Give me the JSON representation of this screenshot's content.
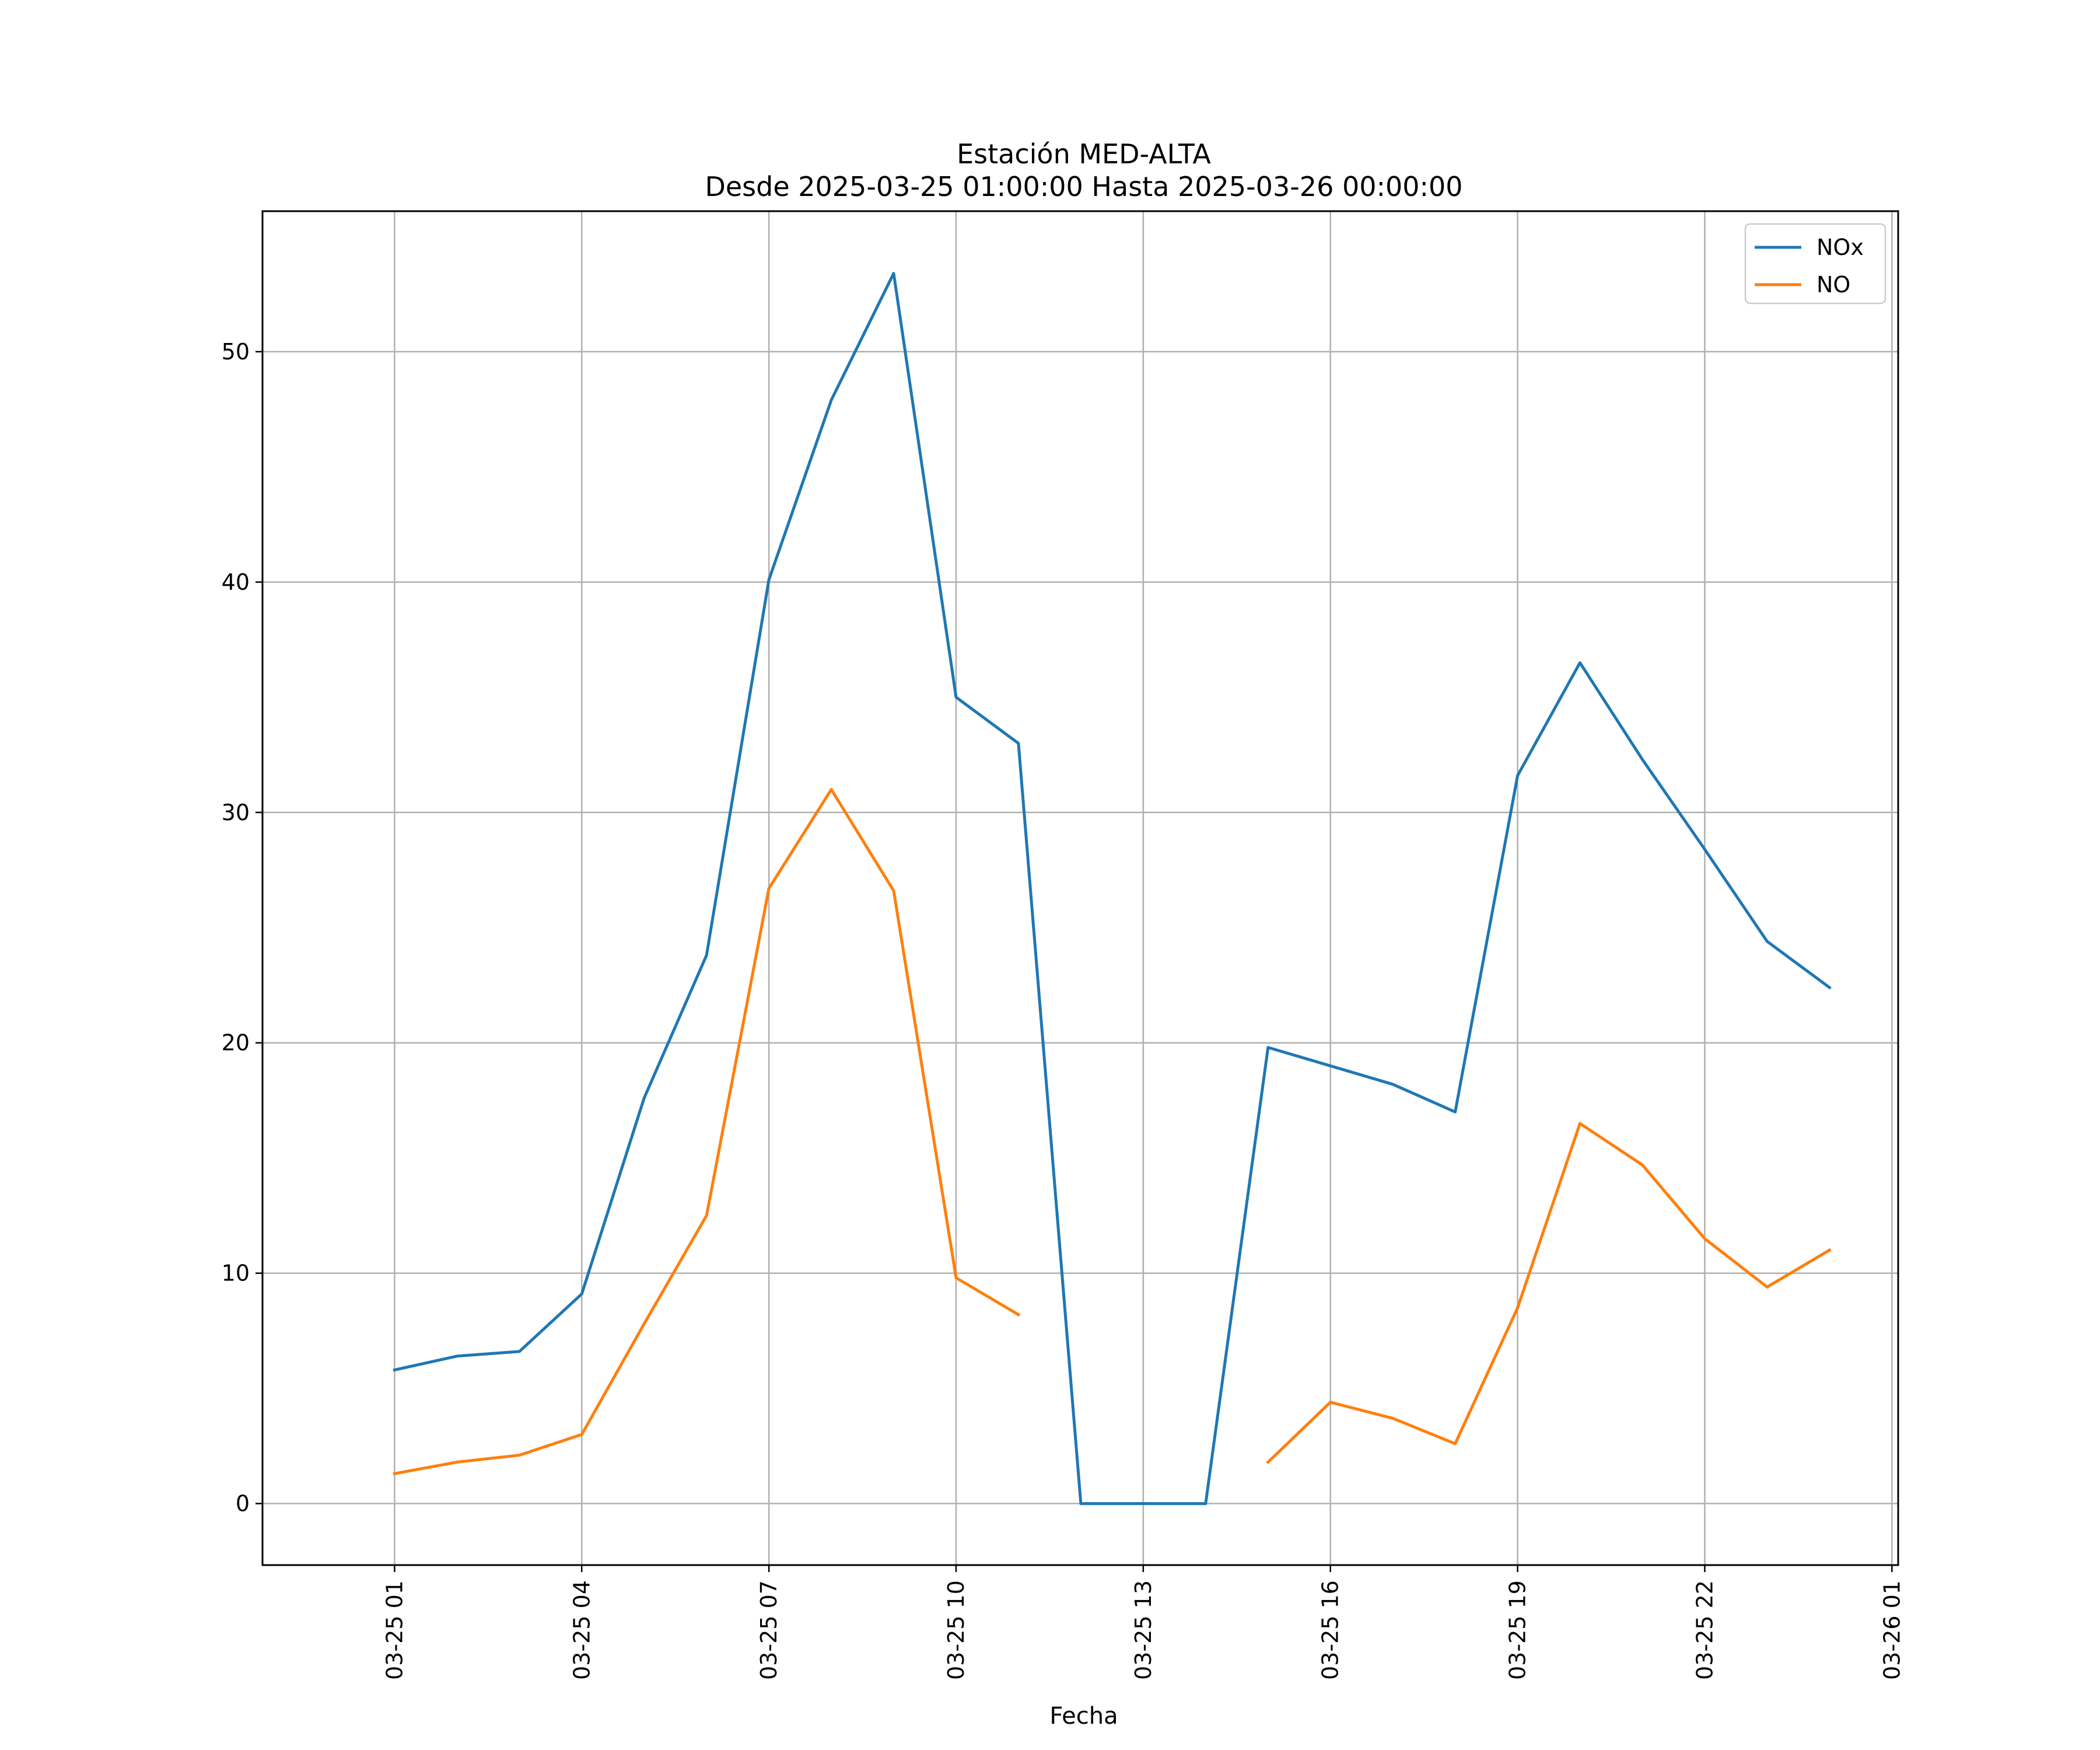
{
  "chart_data": {
    "type": "line",
    "title": "Estación MED-ALTA",
    "subtitle": "Desde 2025-03-25 01:00:00 Hasta 2025-03-26 00:00:00",
    "xlabel": "Fecha",
    "ylabel": "",
    "x": [
      "2025-03-25 01:00",
      "2025-03-25 02:00",
      "2025-03-25 03:00",
      "2025-03-25 04:00",
      "2025-03-25 05:00",
      "2025-03-25 06:00",
      "2025-03-25 07:00",
      "2025-03-25 08:00",
      "2025-03-25 09:00",
      "2025-03-25 10:00",
      "2025-03-25 11:00",
      "2025-03-25 12:00",
      "2025-03-25 13:00",
      "2025-03-25 14:00",
      "2025-03-25 15:00",
      "2025-03-25 16:00",
      "2025-03-25 17:00",
      "2025-03-25 18:00",
      "2025-03-25 19:00",
      "2025-03-25 20:00",
      "2025-03-25 21:00",
      "2025-03-25 22:00",
      "2025-03-25 23:00",
      "2025-03-26 00:00"
    ],
    "series": [
      {
        "name": "NOx",
        "color": "#1f77b4",
        "values": [
          5.8,
          6.4,
          6.6,
          9.1,
          17.6,
          23.8,
          40.1,
          47.9,
          53.4,
          35.0,
          33.0,
          0.0,
          0.0,
          0.0,
          19.8,
          19.0,
          18.2,
          17.0,
          31.6,
          36.5,
          32.3,
          28.4,
          24.4,
          22.4
        ]
      },
      {
        "name": "NO",
        "color": "#ff7f0e",
        "values": [
          1.3,
          1.8,
          2.1,
          3.0,
          7.8,
          12.5,
          26.7,
          31.0,
          26.6,
          9.8,
          8.2,
          null,
          null,
          null,
          1.8,
          4.4,
          3.7,
          2.6,
          8.5,
          16.5,
          14.7,
          11.5,
          9.4,
          11.0
        ]
      }
    ],
    "xticks": [
      "03-25 01",
      "03-25 04",
      "03-25 07",
      "03-25 10",
      "03-25 13",
      "03-25 16",
      "03-25 19",
      "03-25 22",
      "03-26 01"
    ],
    "yticks": [
      "0",
      "10",
      "20",
      "30",
      "40",
      "50"
    ],
    "xlim": [
      "2025-03-24 22:53",
      "2025-03-26 01:06"
    ],
    "ylim": [
      -2.67,
      56.1
    ],
    "grid": true,
    "legend_position": "top-right"
  }
}
